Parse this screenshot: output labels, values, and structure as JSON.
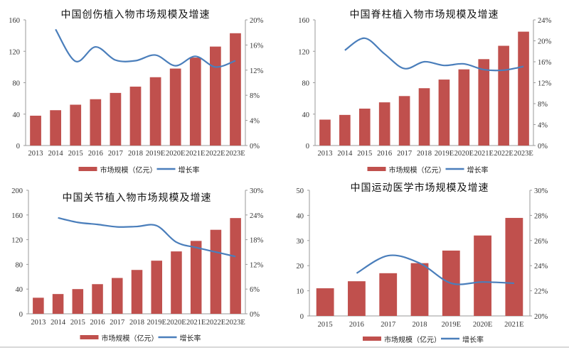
{
  "legend": {
    "bar_label": "市场规模（亿元）",
    "line_label": "增长率"
  },
  "colors": {
    "bar": "#c0504d",
    "line": "#4a7ebb",
    "axis": "#9a9a9a"
  },
  "chart_data": [
    {
      "type": "bar+line",
      "title": "中国创伤植入物市场规模及增速",
      "categories": [
        "2013",
        "2014",
        "2015",
        "2016",
        "2017",
        "2018",
        "2019E",
        "2020E",
        "2021E",
        "2022E",
        "2023E"
      ],
      "series": [
        {
          "name": "市场规模（亿元）",
          "axis": "left",
          "values": [
            38,
            45,
            52,
            59,
            67,
            75,
            87,
            98,
            112,
            126,
            143
          ]
        },
        {
          "name": "增长率",
          "axis": "right",
          "values": [
            null,
            18.5,
            13.4,
            15.7,
            13.6,
            13.5,
            14.4,
            12.7,
            14.2,
            12.5,
            13.5
          ]
        }
      ],
      "ylim": [
        0,
        160
      ],
      "yticks": [
        "0",
        "40",
        "80",
        "120",
        "160"
      ],
      "y2lim": [
        0,
        20
      ],
      "y2ticks": [
        "0%",
        "4%",
        "8%",
        "12%",
        "16%",
        "20%"
      ],
      "legend_position": "bottom"
    },
    {
      "type": "bar+line",
      "title": "中国脊柱植入物市场规模及增速",
      "categories": [
        "2013",
        "2014",
        "2015",
        "2016",
        "2017",
        "2018",
        "2019E",
        "2020E",
        "2021E",
        "2022E",
        "2023E"
      ],
      "series": [
        {
          "name": "市场规模（亿元）",
          "axis": "left",
          "values": [
            33,
            39,
            47,
            55,
            63,
            73,
            84,
            97,
            110,
            127,
            145
          ]
        },
        {
          "name": "增长率",
          "axis": "right",
          "values": [
            null,
            18.2,
            20.5,
            17.5,
            14.7,
            16.0,
            15.3,
            15.6,
            14.5,
            14.4,
            15.1
          ]
        }
      ],
      "ylim": [
        0,
        160
      ],
      "yticks": [
        "0",
        "40",
        "80",
        "120",
        "160"
      ],
      "y2lim": [
        0,
        24
      ],
      "y2ticks": [
        "0%",
        "4%",
        "8%",
        "12%",
        "16%",
        "20%",
        "24%"
      ],
      "legend_position": "bottom"
    },
    {
      "type": "bar+line",
      "title": "中国关节植入物市场规模及增速",
      "categories": [
        "2013",
        "2014",
        "2015",
        "2016",
        "2017",
        "2018",
        "2019E",
        "2020E",
        "2021E",
        "2022E",
        "2023E"
      ],
      "series": [
        {
          "name": "市场规模（亿元）",
          "axis": "left",
          "values": [
            26,
            32,
            40,
            48,
            58,
            71,
            86,
            101,
            118,
            136,
            155
          ]
        },
        {
          "name": "增长率",
          "axis": "right",
          "values": [
            null,
            23.3,
            22.2,
            21.7,
            21.1,
            21.2,
            21.4,
            17.4,
            16.1,
            15.0,
            13.9
          ]
        }
      ],
      "ylim": [
        0,
        200
      ],
      "yticks": [
        "0",
        "40",
        "80",
        "120",
        "160",
        "200"
      ],
      "y2lim": [
        0,
        30
      ],
      "y2ticks": [
        "0%",
        "6%",
        "12%",
        "18%",
        "24%",
        "30%"
      ],
      "legend_position": "bottom"
    },
    {
      "type": "bar+line",
      "title": "中国运动医学市场规模及增速",
      "categories": [
        "2015",
        "2016",
        "2017",
        "2018",
        "2019E",
        "2020E",
        "2021E"
      ],
      "series": [
        {
          "name": "市场规模（亿元）",
          "axis": "left",
          "values": [
            11,
            13.8,
            17,
            21,
            26,
            32,
            39
          ]
        },
        {
          "name": "增长率",
          "axis": "right",
          "values": [
            null,
            23.4,
            24.8,
            24.2,
            22.6,
            22.7,
            22.6
          ]
        }
      ],
      "ylim": [
        0,
        50
      ],
      "yticks": [
        "0",
        "10",
        "20",
        "30",
        "40",
        "50"
      ],
      "y2lim": [
        20,
        30
      ],
      "y2ticks": [
        "20%",
        "22%",
        "24%",
        "26%",
        "28%",
        "30%"
      ],
      "legend_position": "bottom"
    }
  ]
}
